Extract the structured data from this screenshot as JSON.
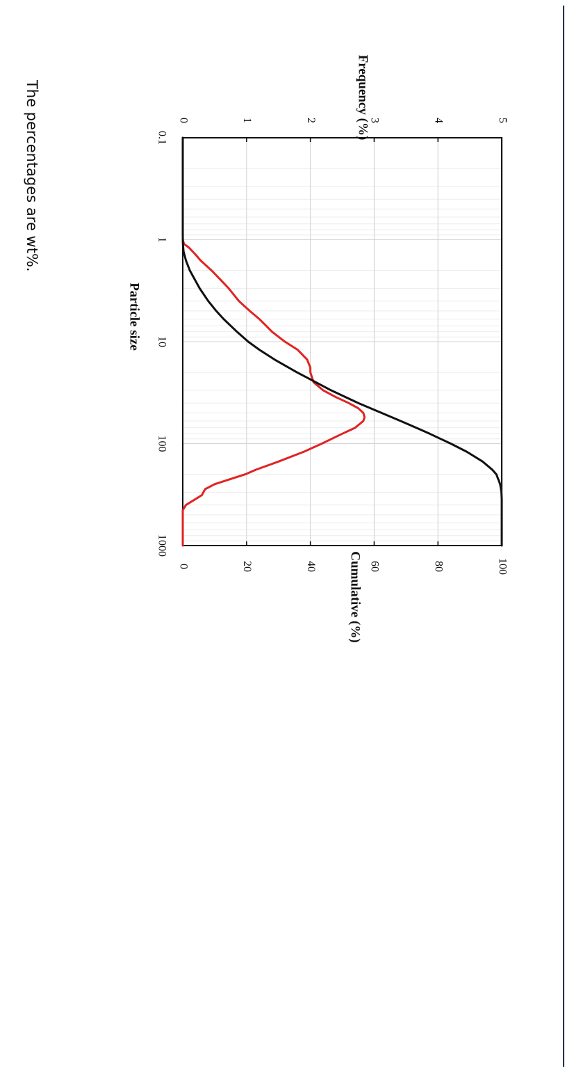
{
  "caption": "The percentages are wt%.",
  "chart_data": {
    "type": "line",
    "orientation": "rotated-90-clockwise",
    "title": "",
    "xlabel": "Particle size",
    "xscale": "log",
    "xlim": [
      0.1,
      1000
    ],
    "xticks": [
      "0.1",
      "1",
      "10",
      "100",
      "1000"
    ],
    "ylabel_left": "Frequency (%)",
    "ylim_left": [
      0,
      5
    ],
    "yticks_left": [
      "0",
      "1",
      "2",
      "3",
      "4",
      "5"
    ],
    "ylabel_right": "Cumulative (%)",
    "ylim_right": [
      0,
      100
    ],
    "yticks_right": [
      "0",
      "20",
      "40",
      "60",
      "80",
      "100"
    ],
    "grid": true,
    "colors": {
      "frequency": "#e02424",
      "cumulative": "#111111"
    },
    "series": [
      {
        "name": "Frequency",
        "axis": "left",
        "x": [
          1,
          1.1,
          1.2,
          1.4,
          1.6,
          2,
          2.5,
          3,
          4,
          5,
          6,
          8,
          10,
          12,
          15,
          18,
          20,
          25,
          30,
          35,
          40,
          45,
          50,
          55,
          60,
          70,
          80,
          100,
          120,
          150,
          180,
          200,
          250,
          280,
          320,
          350,
          400,
          450,
          500,
          600,
          800,
          1000
        ],
        "values": [
          0,
          0.02,
          0.1,
          0.2,
          0.28,
          0.45,
          0.6,
          0.72,
          0.88,
          1.05,
          1.2,
          1.4,
          1.6,
          1.8,
          1.95,
          2.0,
          2.0,
          2.05,
          2.2,
          2.4,
          2.6,
          2.75,
          2.83,
          2.85,
          2.83,
          2.7,
          2.5,
          2.18,
          1.9,
          1.5,
          1.15,
          0.98,
          0.5,
          0.35,
          0.3,
          0.2,
          0.05,
          0,
          0,
          0,
          0,
          0
        ]
      },
      {
        "name": "Cumulative",
        "axis": "right",
        "x": [
          0.1,
          0.3,
          0.6,
          0.9,
          1.1,
          1.3,
          1.6,
          2,
          3,
          4,
          5,
          6,
          8,
          10,
          12,
          15,
          20,
          25,
          30,
          40,
          50,
          60,
          70,
          80,
          100,
          120,
          150,
          180,
          200,
          250,
          300,
          350,
          400,
          1000
        ],
        "values": [
          0,
          0,
          0,
          0,
          0.05,
          0.25,
          1,
          2.2,
          5.3,
          8,
          10.5,
          12.8,
          17,
          20.5,
          24,
          28.8,
          35.8,
          41.7,
          46.5,
          55,
          62.3,
          68.3,
          73.2,
          77.4,
          84,
          89,
          94,
          97,
          98.3,
          99.5,
          99.9,
          100,
          100,
          100
        ]
      }
    ]
  }
}
